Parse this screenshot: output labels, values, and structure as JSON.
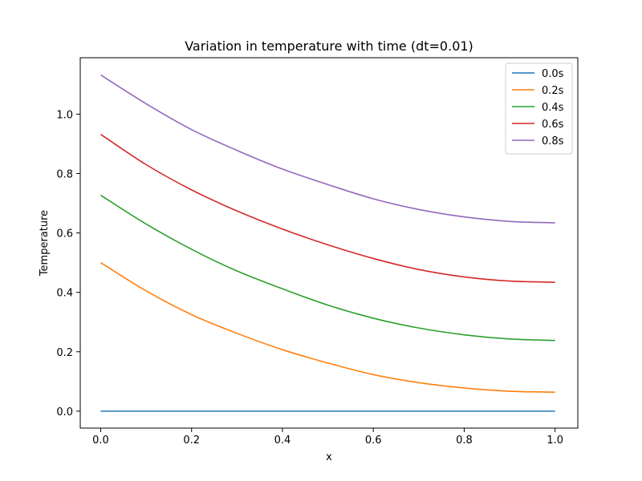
{
  "chart_data": {
    "type": "line",
    "title": "Variation in temperature with time (dt=0.01)",
    "xlabel": "x",
    "ylabel": "Temperature",
    "xlim": [
      -0.045,
      1.05
    ],
    "ylim": [
      -0.057,
      1.19
    ],
    "xticks": [
      0.0,
      0.2,
      0.4,
      0.6,
      0.8,
      1.0
    ],
    "xtick_labels": [
      "0.0",
      "0.2",
      "0.4",
      "0.6",
      "0.8",
      "1.0"
    ],
    "yticks": [
      0.0,
      0.2,
      0.4,
      0.6,
      0.8,
      1.0
    ],
    "ytick_labels": [
      "0.0",
      "0.2",
      "0.4",
      "0.6",
      "0.8",
      "1.0"
    ],
    "grid": false,
    "legend_position": "top-right",
    "x": [
      0.0,
      0.1,
      0.2,
      0.3,
      0.4,
      0.5,
      0.6,
      0.7,
      0.8,
      0.9,
      1.0
    ],
    "series": [
      {
        "name": "0.0s",
        "color": "#1f77b4",
        "values": [
          0,
          0,
          0,
          0,
          0,
          0,
          0,
          0,
          0,
          0,
          0
        ]
      },
      {
        "name": "0.2s",
        "color": "#ff7f0e",
        "values": [
          0.5,
          0.405,
          0.325,
          0.262,
          0.207,
          0.162,
          0.123,
          0.096,
          0.078,
          0.067,
          0.064
        ]
      },
      {
        "name": "0.4s",
        "color": "#2ca02c",
        "values": [
          0.727,
          0.63,
          0.545,
          0.472,
          0.412,
          0.357,
          0.313,
          0.28,
          0.257,
          0.243,
          0.238
        ]
      },
      {
        "name": "0.6s",
        "color": "#d62728",
        "values": [
          0.932,
          0.83,
          0.745,
          0.674,
          0.613,
          0.56,
          0.514,
          0.477,
          0.452,
          0.438,
          0.434
        ]
      },
      {
        "name": "0.8s",
        "color": "#9467bd",
        "values": [
          1.132,
          1.035,
          0.948,
          0.878,
          0.815,
          0.763,
          0.715,
          0.679,
          0.654,
          0.639,
          0.634
        ]
      }
    ]
  }
}
